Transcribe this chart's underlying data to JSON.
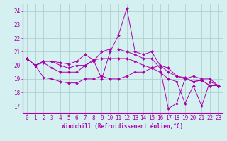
{
  "xlabel": "Windchill (Refroidissement éolien,°C)",
  "background_color": "#d4f0f0",
  "line_color": "#aa00aa",
  "grid_color": "#aacccc",
  "xlim": [
    -0.5,
    23.5
  ],
  "ylim": [
    16.5,
    24.5
  ],
  "yticks": [
    17,
    18,
    19,
    20,
    21,
    22,
    23,
    24
  ],
  "xticks": [
    0,
    1,
    2,
    3,
    4,
    5,
    6,
    7,
    8,
    9,
    10,
    11,
    12,
    13,
    14,
    15,
    16,
    17,
    18,
    19,
    20,
    21,
    22,
    23
  ],
  "lines": [
    [
      20.5,
      20.0,
      20.3,
      20.3,
      20.2,
      20.1,
      20.3,
      20.8,
      20.4,
      19.0,
      21.0,
      22.2,
      24.2,
      21.0,
      20.8,
      21.0,
      20.0,
      19.8,
      19.2,
      19.0,
      18.8,
      18.9,
      18.5,
      18.5
    ],
    [
      20.5,
      20.0,
      19.1,
      19.0,
      18.8,
      18.7,
      18.7,
      19.0,
      19.0,
      19.2,
      19.0,
      19.0,
      19.2,
      19.5,
      19.5,
      19.8,
      20.0,
      19.5,
      19.2,
      19.1,
      18.8,
      18.9,
      18.5,
      18.5
    ],
    [
      20.5,
      20.0,
      20.3,
      20.3,
      20.0,
      19.8,
      20.0,
      20.0,
      20.4,
      20.5,
      20.5,
      20.5,
      20.5,
      20.3,
      20.0,
      19.8,
      19.5,
      19.0,
      18.8,
      17.2,
      18.5,
      17.0,
      18.8,
      18.5
    ],
    [
      20.5,
      20.0,
      20.2,
      19.8,
      19.5,
      19.5,
      19.5,
      20.0,
      20.3,
      21.0,
      21.2,
      21.2,
      21.0,
      20.8,
      20.5,
      20.5,
      19.8,
      16.8,
      17.2,
      19.0,
      19.2,
      19.0,
      19.0,
      18.5
    ]
  ],
  "tick_fontsize": 5.5,
  "xlabel_fontsize": 5.5
}
